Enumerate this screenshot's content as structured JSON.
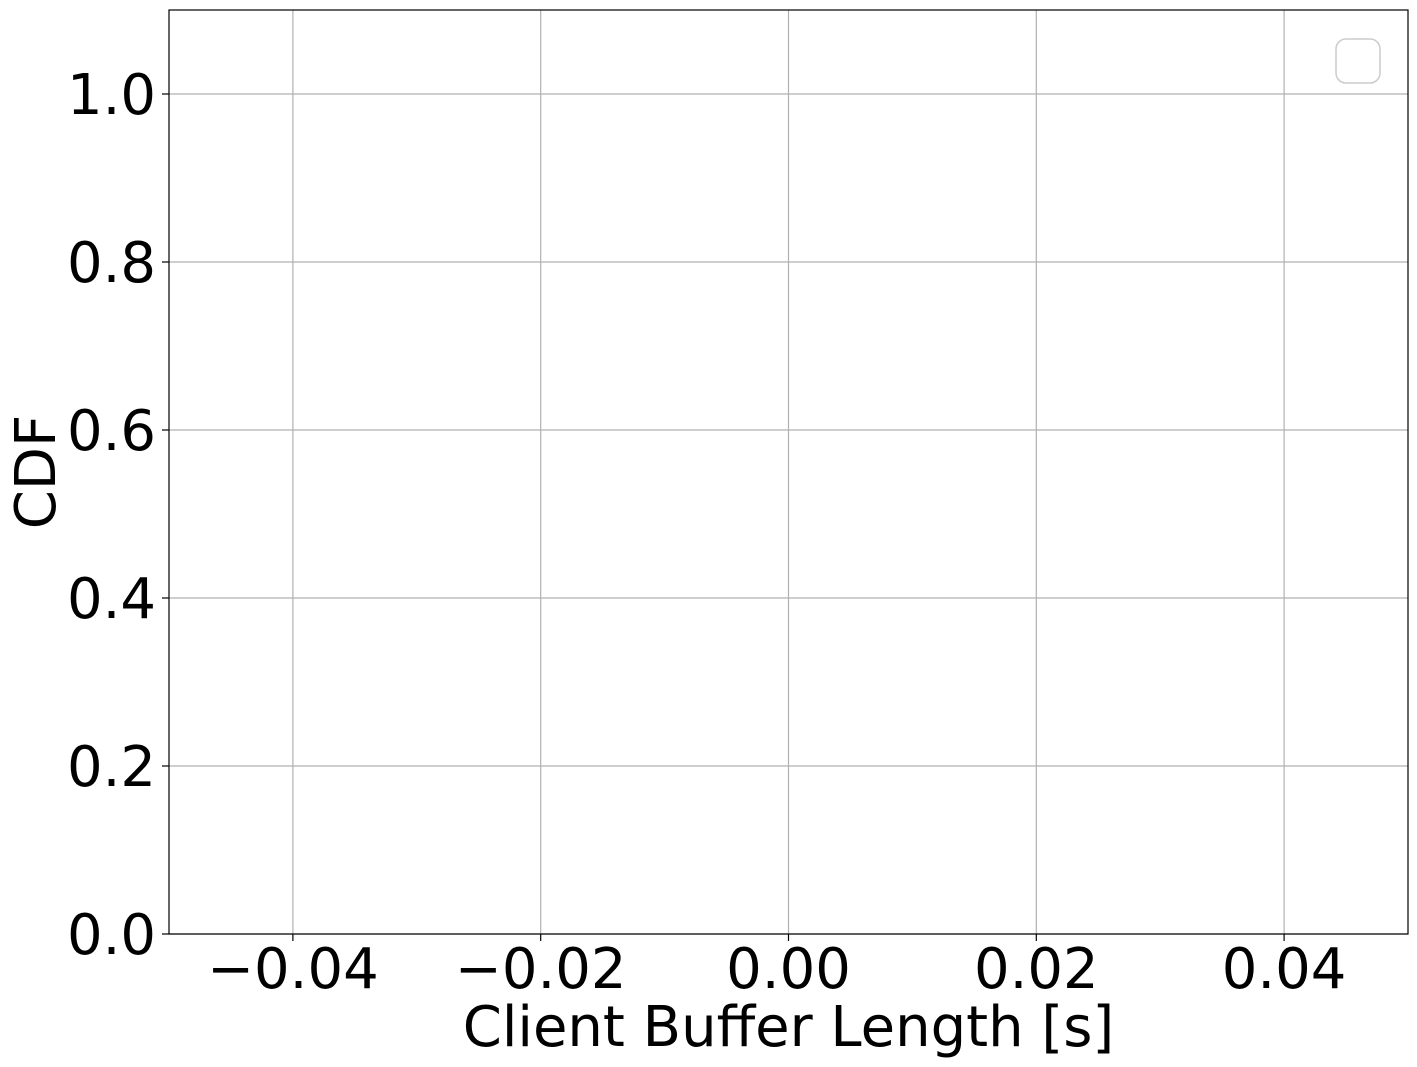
{
  "chart_data": {
    "type": "line",
    "title": "",
    "xlabel": "Client Buffer Length [s]",
    "ylabel": "CDF",
    "xlim": [
      -0.05,
      0.05
    ],
    "ylim": [
      0.0,
      1.1
    ],
    "xticks": [
      -0.04,
      -0.02,
      0.0,
      0.02,
      0.04
    ],
    "xtick_labels": [
      "−0.04",
      "−0.02",
      "0.00",
      "0.02",
      "0.04"
    ],
    "yticks": [
      0.0,
      0.2,
      0.4,
      0.6,
      0.8,
      1.0
    ],
    "ytick_labels": [
      "0.0",
      "0.2",
      "0.4",
      "0.6",
      "0.8",
      "1.0"
    ],
    "grid": true,
    "legend": {
      "placement": "top-right",
      "entries": []
    },
    "series": [],
    "colors": {
      "grid": "#b0b0b0",
      "axes": "#000000",
      "background": "#ffffff"
    }
  }
}
